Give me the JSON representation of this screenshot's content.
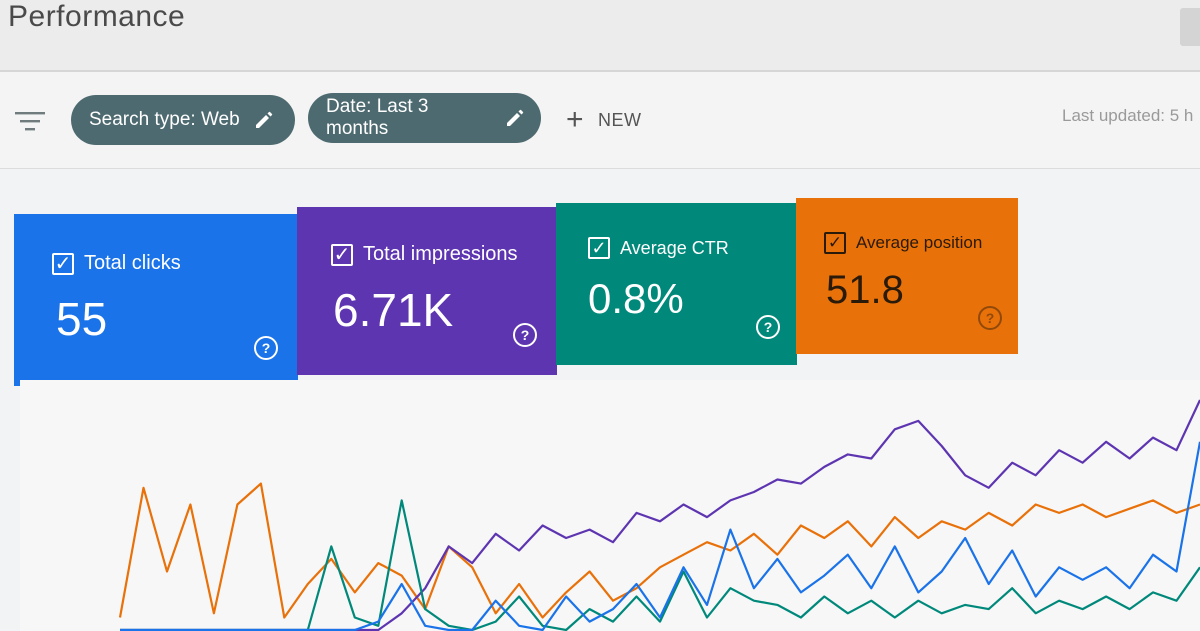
{
  "header": {
    "title": "Performance"
  },
  "toolbar": {
    "chips": [
      {
        "label": "Search type: Web"
      },
      {
        "label": "Date: Last 3 months"
      }
    ],
    "new_label": "NEW",
    "last_updated": "Last updated: 5 h"
  },
  "metrics": [
    {
      "label": "Total clicks",
      "value": "55",
      "color": "#1a73e8",
      "selected": true
    },
    {
      "label": "Total impressions",
      "value": "6.71K",
      "color": "#5e35b1",
      "selected": true
    },
    {
      "label": "Average CTR",
      "value": "0.8%",
      "color": "#00897b",
      "selected": true
    },
    {
      "label": "Average position",
      "value": "51.8",
      "color": "#e8710a",
      "selected": true
    }
  ],
  "icons": [
    "filter-icon",
    "edit-icon",
    "add-icon",
    "checkbox-icon",
    "help-icon"
  ],
  "chart_data": {
    "type": "line",
    "series": [
      {
        "color": "#e8710a",
        "values": [
          6,
          68,
          28,
          60,
          8,
          60,
          70,
          6,
          22,
          34,
          18,
          32,
          26,
          10,
          40,
          30,
          8,
          22,
          6,
          18,
          28,
          14,
          20,
          30,
          36,
          42,
          38,
          46,
          36,
          50,
          44,
          52,
          40,
          54,
          44,
          52,
          48,
          56,
          50,
          60,
          56,
          60,
          54,
          58,
          62,
          56,
          60
        ]
      },
      {
        "color": "#5e35b1",
        "values": [
          0,
          0,
          0,
          0,
          0,
          0,
          0,
          0,
          0,
          0,
          0,
          0,
          8,
          20,
          40,
          32,
          46,
          38,
          50,
          44,
          48,
          42,
          56,
          52,
          60,
          54,
          62,
          66,
          72,
          70,
          78,
          84,
          82,
          96,
          100,
          88,
          74,
          68,
          80,
          74,
          86,
          80,
          90,
          82,
          92,
          86,
          110
        ]
      },
      {
        "color": "#00897b",
        "values": [
          0,
          0,
          0,
          0,
          0,
          0,
          0,
          0,
          0,
          40,
          6,
          2,
          62,
          10,
          2,
          0,
          4,
          16,
          2,
          0,
          10,
          4,
          16,
          4,
          28,
          6,
          20,
          14,
          12,
          6,
          16,
          8,
          14,
          6,
          14,
          8,
          12,
          10,
          20,
          8,
          14,
          10,
          16,
          10,
          18,
          14,
          30
        ]
      },
      {
        "color": "#1a73e8",
        "values": [
          0,
          0,
          0,
          0,
          0,
          0,
          0,
          0,
          0,
          0,
          0,
          4,
          22,
          2,
          0,
          0,
          14,
          2,
          0,
          16,
          4,
          10,
          22,
          6,
          30,
          12,
          48,
          20,
          34,
          18,
          26,
          36,
          20,
          40,
          18,
          28,
          44,
          22,
          38,
          16,
          30,
          24,
          30,
          20,
          36,
          28,
          90
        ]
      }
    ]
  }
}
